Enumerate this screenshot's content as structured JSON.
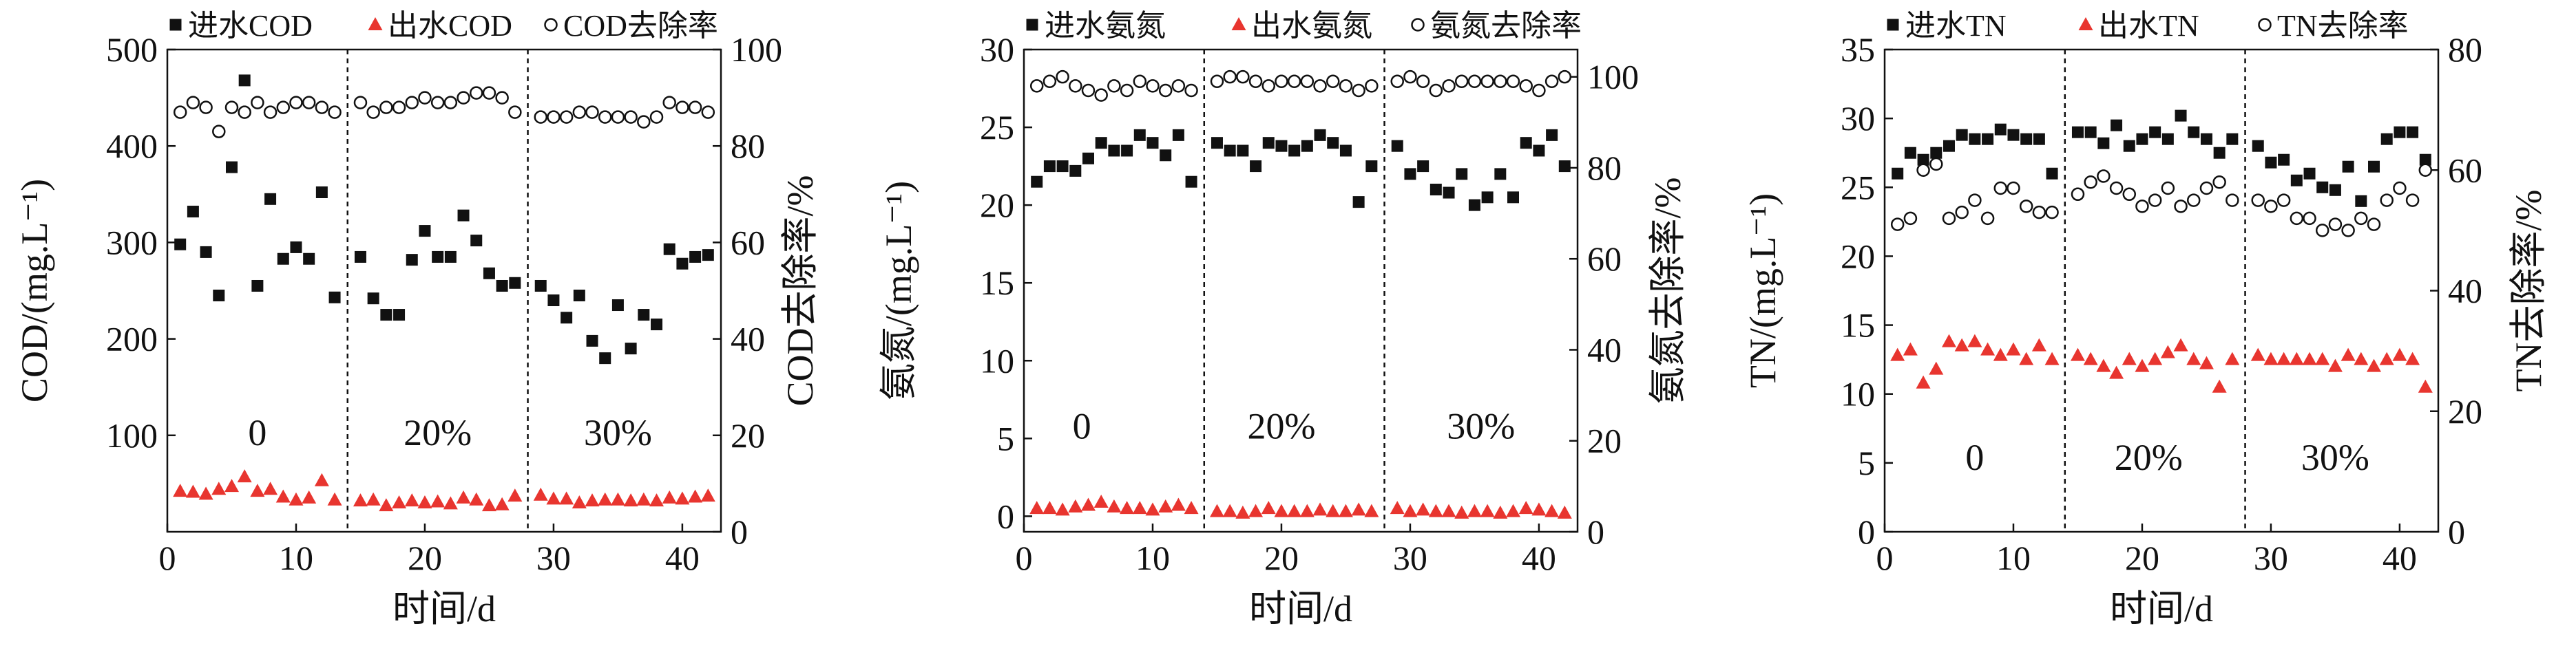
{
  "colors": {
    "influent": "#111111",
    "effluent": "#e8352f",
    "removal": "#111111",
    "axis": "#111111"
  },
  "chart_data": [
    {
      "type": "scatter",
      "xlabel": "时间/d",
      "ylabel": "COD/(mg.L⁻¹)",
      "y2label": "COD去除率/%",
      "xlim": [
        0,
        43
      ],
      "ylim": [
        0,
        500
      ],
      "y2lim": [
        0,
        100
      ],
      "xticks": [
        "0",
        "10",
        "20",
        "30",
        "40"
      ],
      "yticks": [
        "100",
        "200",
        "300",
        "400",
        "500"
      ],
      "y2ticks": [
        "0",
        "20",
        "40",
        "60",
        "80",
        "100"
      ],
      "phase_boundaries": [
        14,
        28
      ],
      "phase_labels": [
        {
          "text": "0",
          "x": 7,
          "y": 90
        },
        {
          "text": "20%",
          "x": 21,
          "y": 90
        },
        {
          "text": "30%",
          "x": 35,
          "y": 90
        }
      ],
      "legend": [
        {
          "marker": "square",
          "label": "进水COD"
        },
        {
          "marker": "triangle",
          "label": "出水COD"
        },
        {
          "marker": "circle",
          "label": "COD去除率"
        }
      ],
      "series": [
        {
          "name": "进水COD",
          "marker": "square",
          "axis": "left",
          "x": [
            1,
            2,
            3,
            4,
            5,
            6,
            7,
            8,
            9,
            10,
            11,
            12,
            13,
            15,
            16,
            17,
            18,
            19,
            20,
            21,
            22,
            23,
            24,
            25,
            26,
            27,
            29,
            30,
            31,
            32,
            33,
            34,
            35,
            36,
            37,
            38,
            39,
            40,
            41,
            42
          ],
          "y": [
            298,
            332,
            290,
            245,
            378,
            468,
            255,
            345,
            283,
            295,
            283,
            352,
            243,
            285,
            242,
            225,
            225,
            282,
            312,
            285,
            285,
            328,
            302,
            268,
            255,
            258,
            255,
            240,
            222,
            245,
            198,
            180,
            235,
            190,
            225,
            215,
            293,
            278,
            285,
            287
          ]
        },
        {
          "name": "出水COD",
          "marker": "triangle",
          "axis": "left",
          "x": [
            1,
            2,
            3,
            4,
            5,
            6,
            7,
            8,
            9,
            10,
            11,
            12,
            13,
            15,
            16,
            17,
            18,
            19,
            20,
            21,
            22,
            23,
            24,
            25,
            26,
            27,
            29,
            30,
            31,
            32,
            33,
            34,
            35,
            36,
            37,
            38,
            39,
            40,
            41,
            42
          ],
          "y": [
            42,
            41,
            39,
            44,
            47,
            57,
            42,
            44,
            36,
            33,
            35,
            53,
            33,
            32,
            33,
            27,
            30,
            32,
            30,
            31,
            29,
            35,
            33,
            27,
            28,
            37,
            38,
            34,
            34,
            30,
            32,
            33,
            33,
            32,
            33,
            32,
            35,
            34,
            36,
            37
          ]
        },
        {
          "name": "COD去除率",
          "marker": "circle",
          "axis": "right",
          "x": [
            1,
            2,
            3,
            4,
            5,
            6,
            7,
            8,
            9,
            10,
            11,
            12,
            13,
            15,
            16,
            17,
            18,
            19,
            20,
            21,
            22,
            23,
            24,
            25,
            26,
            27,
            29,
            30,
            31,
            32,
            33,
            34,
            35,
            36,
            37,
            38,
            39,
            40,
            41,
            42
          ],
          "y": [
            87,
            89,
            88,
            83,
            88,
            87,
            89,
            87,
            88,
            89,
            89,
            88,
            87,
            89,
            87,
            88,
            88,
            89,
            90,
            89,
            89,
            90,
            91,
            91,
            90,
            87,
            86,
            86,
            86,
            87,
            87,
            86,
            86,
            86,
            85,
            86,
            89,
            88,
            88,
            87
          ]
        }
      ]
    },
    {
      "type": "scatter",
      "xlabel": "时间/d",
      "ylabel": "氨氮/(mg.L⁻¹)",
      "y2label": "氨氮去除率/%",
      "xlim": [
        0,
        43
      ],
      "ylim": [
        -1,
        30
      ],
      "y2lim": [
        0,
        106
      ],
      "xticks": [
        "0",
        "10",
        "20",
        "30",
        "40"
      ],
      "yticks": [
        "0",
        "5",
        "10",
        "15",
        "20",
        "25",
        "30"
      ],
      "y2ticks": [
        "0",
        "20",
        "40",
        "60",
        "80",
        "100"
      ],
      "phase_boundaries": [
        14,
        28
      ],
      "phase_labels": [
        {
          "text": "0",
          "x": 4.5,
          "y": 5
        },
        {
          "text": "20%",
          "x": 20,
          "y": 5
        },
        {
          "text": "30%",
          "x": 35.5,
          "y": 5
        }
      ],
      "legend": [
        {
          "marker": "square",
          "label": "进水氨氮"
        },
        {
          "marker": "triangle",
          "label": "出水氨氮"
        },
        {
          "marker": "circle",
          "label": "氨氮去除率"
        }
      ],
      "series": [
        {
          "name": "进水氨氮",
          "marker": "square",
          "axis": "left",
          "x": [
            1,
            2,
            3,
            4,
            5,
            6,
            7,
            8,
            9,
            10,
            11,
            12,
            13,
            15,
            16,
            17,
            18,
            19,
            20,
            21,
            22,
            23,
            24,
            25,
            26,
            27,
            29,
            30,
            31,
            32,
            33,
            34,
            35,
            36,
            37,
            38,
            39,
            40,
            41,
            42
          ],
          "y": [
            21.5,
            22.5,
            22.5,
            22.2,
            23.0,
            24.0,
            23.5,
            23.5,
            24.5,
            24.0,
            23.2,
            24.5,
            21.5,
            24.0,
            23.5,
            23.5,
            22.5,
            24.0,
            23.8,
            23.5,
            23.8,
            24.5,
            24.0,
            23.5,
            20.2,
            22.5,
            23.8,
            22.0,
            22.5,
            21.0,
            20.8,
            22.0,
            20.0,
            20.5,
            22.0,
            20.5,
            24.0,
            23.5,
            24.5,
            22.5
          ]
        },
        {
          "name": "出水氨氮",
          "marker": "triangle",
          "axis": "left",
          "x": [
            1,
            2,
            3,
            4,
            5,
            6,
            7,
            8,
            9,
            10,
            11,
            12,
            13,
            15,
            16,
            17,
            18,
            19,
            20,
            21,
            22,
            23,
            24,
            25,
            26,
            27,
            29,
            30,
            31,
            32,
            33,
            34,
            35,
            36,
            37,
            38,
            39,
            40,
            41,
            42
          ],
          "y": [
            0.5,
            0.5,
            0.4,
            0.6,
            0.7,
            0.9,
            0.6,
            0.5,
            0.5,
            0.4,
            0.6,
            0.7,
            0.5,
            0.3,
            0.3,
            0.2,
            0.3,
            0.5,
            0.3,
            0.3,
            0.3,
            0.4,
            0.3,
            0.3,
            0.4,
            0.3,
            0.5,
            0.3,
            0.4,
            0.3,
            0.3,
            0.2,
            0.3,
            0.3,
            0.2,
            0.3,
            0.5,
            0.4,
            0.3,
            0.2
          ]
        },
        {
          "name": "氨氮去除率",
          "marker": "circle",
          "axis": "right",
          "x": [
            1,
            2,
            3,
            4,
            5,
            6,
            7,
            8,
            9,
            10,
            11,
            12,
            13,
            15,
            16,
            17,
            18,
            19,
            20,
            21,
            22,
            23,
            24,
            25,
            26,
            27,
            29,
            30,
            31,
            32,
            33,
            34,
            35,
            36,
            37,
            38,
            39,
            40,
            41,
            42
          ],
          "y": [
            98,
            99,
            100,
            98,
            97,
            96,
            98,
            97,
            99,
            98,
            97,
            98,
            97,
            99,
            100,
            100,
            99,
            98,
            99,
            99,
            99,
            98,
            99,
            98,
            97,
            98,
            99,
            100,
            99,
            97,
            98,
            99,
            99,
            99,
            99,
            99,
            98,
            97,
            99,
            100
          ]
        }
      ]
    },
    {
      "type": "scatter",
      "xlabel": "时间/d",
      "ylabel": "TN/(mg.L⁻¹)",
      "y2label": "TN去除率/%",
      "xlim": [
        0,
        43
      ],
      "ylim": [
        0,
        35
      ],
      "y2lim": [
        0,
        80
      ],
      "xticks": [
        "0",
        "10",
        "20",
        "30",
        "40"
      ],
      "yticks": [
        "0",
        "5",
        "10",
        "15",
        "20",
        "25",
        "30",
        "35"
      ],
      "y2ticks": [
        "0",
        "20",
        "40",
        "60",
        "80"
      ],
      "phase_boundaries": [
        14,
        28
      ],
      "phase_labels": [
        {
          "text": "0",
          "x": 7,
          "y": 4.5
        },
        {
          "text": "20%",
          "x": 20.5,
          "y": 4.5
        },
        {
          "text": "30%",
          "x": 35,
          "y": 4.5
        }
      ],
      "legend": [
        {
          "marker": "square",
          "label": "进水TN"
        },
        {
          "marker": "triangle",
          "label": "出水TN"
        },
        {
          "marker": "circle",
          "label": "TN去除率"
        }
      ],
      "series": [
        {
          "name": "进水TN",
          "marker": "square",
          "axis": "left",
          "x": [
            1,
            2,
            3,
            4,
            5,
            6,
            7,
            8,
            9,
            10,
            11,
            12,
            13,
            15,
            16,
            17,
            18,
            19,
            20,
            21,
            22,
            23,
            24,
            25,
            26,
            27,
            29,
            30,
            31,
            32,
            33,
            34,
            35,
            36,
            37,
            38,
            39,
            40,
            41,
            42
          ],
          "y": [
            26.0,
            27.5,
            27.0,
            27.5,
            28.0,
            28.8,
            28.5,
            28.5,
            29.2,
            28.8,
            28.5,
            28.5,
            26.0,
            29.0,
            29.0,
            28.2,
            29.5,
            28.0,
            28.5,
            29.0,
            28.5,
            30.2,
            29.0,
            28.5,
            27.5,
            28.5,
            28.0,
            26.8,
            27.0,
            25.5,
            26.0,
            25.0,
            24.8,
            26.5,
            24.0,
            26.5,
            28.5,
            29.0,
            29.0,
            27.0
          ]
        },
        {
          "name": "出水TN",
          "marker": "triangle",
          "axis": "left",
          "x": [
            1,
            2,
            3,
            4,
            5,
            6,
            7,
            8,
            9,
            10,
            11,
            12,
            13,
            15,
            16,
            17,
            18,
            19,
            20,
            21,
            22,
            23,
            24,
            25,
            26,
            27,
            29,
            30,
            31,
            32,
            33,
            34,
            35,
            36,
            37,
            38,
            39,
            40,
            41,
            42
          ],
          "y": [
            12.8,
            13.2,
            10.8,
            11.8,
            13.8,
            13.5,
            13.8,
            13.2,
            12.8,
            13.2,
            12.5,
            13.5,
            12.5,
            12.8,
            12.5,
            12.0,
            11.5,
            12.5,
            12.0,
            12.5,
            13.0,
            13.5,
            12.5,
            12.2,
            10.5,
            12.5,
            12.8,
            12.5,
            12.5,
            12.5,
            12.5,
            12.5,
            12.0,
            12.8,
            12.5,
            12.0,
            12.5,
            12.8,
            12.5,
            10.5
          ]
        },
        {
          "name": "TN去除率",
          "marker": "circle",
          "axis": "right",
          "x": [
            1,
            2,
            3,
            4,
            5,
            6,
            7,
            8,
            9,
            10,
            11,
            12,
            13,
            15,
            16,
            17,
            18,
            19,
            20,
            21,
            22,
            23,
            24,
            25,
            26,
            27,
            29,
            30,
            31,
            32,
            33,
            34,
            35,
            36,
            37,
            38,
            39,
            40,
            41,
            42
          ],
          "y": [
            51,
            52,
            60,
            61,
            52,
            53,
            55,
            52,
            57,
            57,
            54,
            53,
            53,
            56,
            58,
            59,
            57,
            56,
            54,
            55,
            57,
            54,
            55,
            57,
            58,
            55,
            55,
            54,
            55,
            52,
            52,
            50,
            51,
            50,
            52,
            51,
            55,
            57,
            55,
            60
          ]
        }
      ]
    }
  ]
}
